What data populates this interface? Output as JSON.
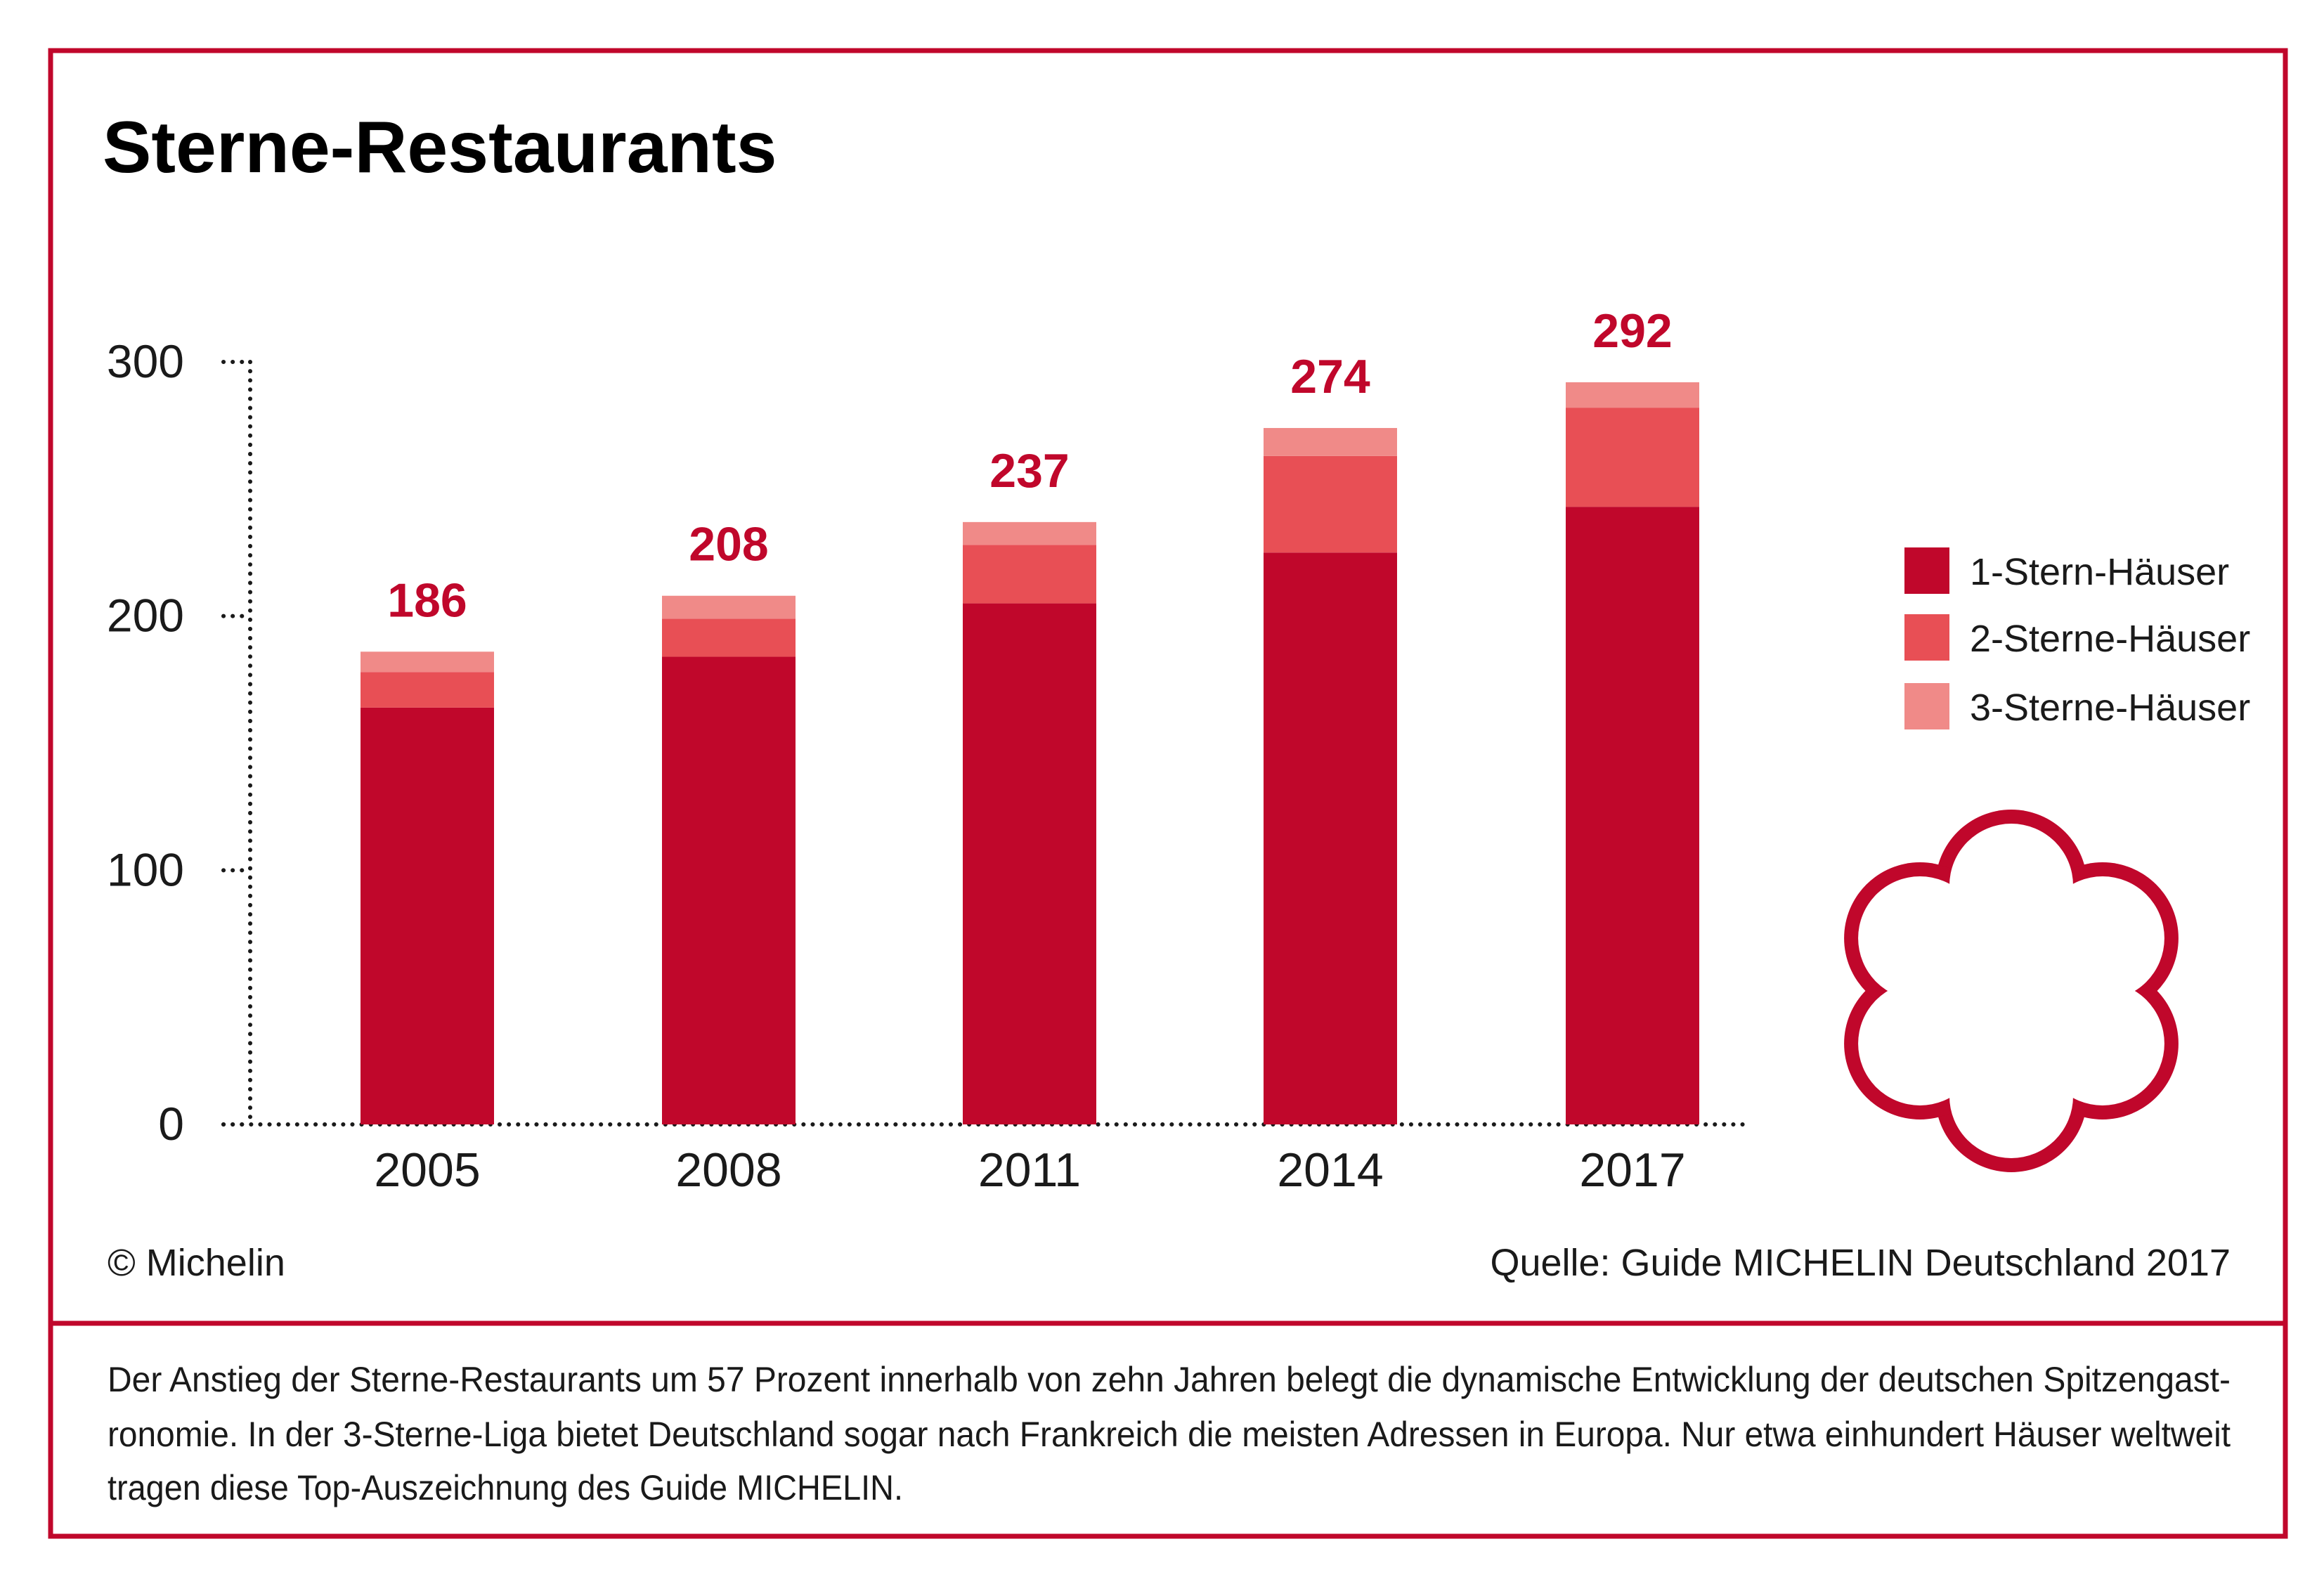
{
  "chart_data": {
    "type": "stacked-bar",
    "title": "Sterne-Restaurants",
    "categories": [
      "2005",
      "2008",
      "2011",
      "2014",
      "2017"
    ],
    "series": [
      {
        "name": "1-Stern-Häuser",
        "color": "#c0072b",
        "values": [
          164,
          184,
          205,
          225,
          243
        ]
      },
      {
        "name": "2-Sterne-Häuser",
        "color": "#e84f55",
        "values": [
          14,
          15,
          23,
          38,
          39
        ]
      },
      {
        "name": "3-Sterne-Häuser",
        "color": "#f08a88",
        "values": [
          8,
          9,
          9,
          11,
          10
        ]
      }
    ],
    "totals": [
      186,
      208,
      237,
      274,
      292
    ],
    "ylim": [
      0,
      300
    ],
    "yticks": [
      0,
      100,
      200,
      300
    ],
    "legend": "right",
    "copyright": "© Michelin",
    "source": "Quelle: Guide MICHELIN Deutschland 2017",
    "description": [
      "Der Anstieg der Sterne-Restaurants um 57 Prozent innerhalb von zehn Jahren belegt die dynamische Entwicklung der deutschen Spitzengast-",
      "ronomie. In der 3-Sterne-Liga bietet Deutschland sogar nach Frankreich die meisten Adressen in Europa. Nur etwa einhundert Häuser weltweit",
      "tragen diese Top-Auszeichnung des Guide MICHELIN."
    ]
  }
}
